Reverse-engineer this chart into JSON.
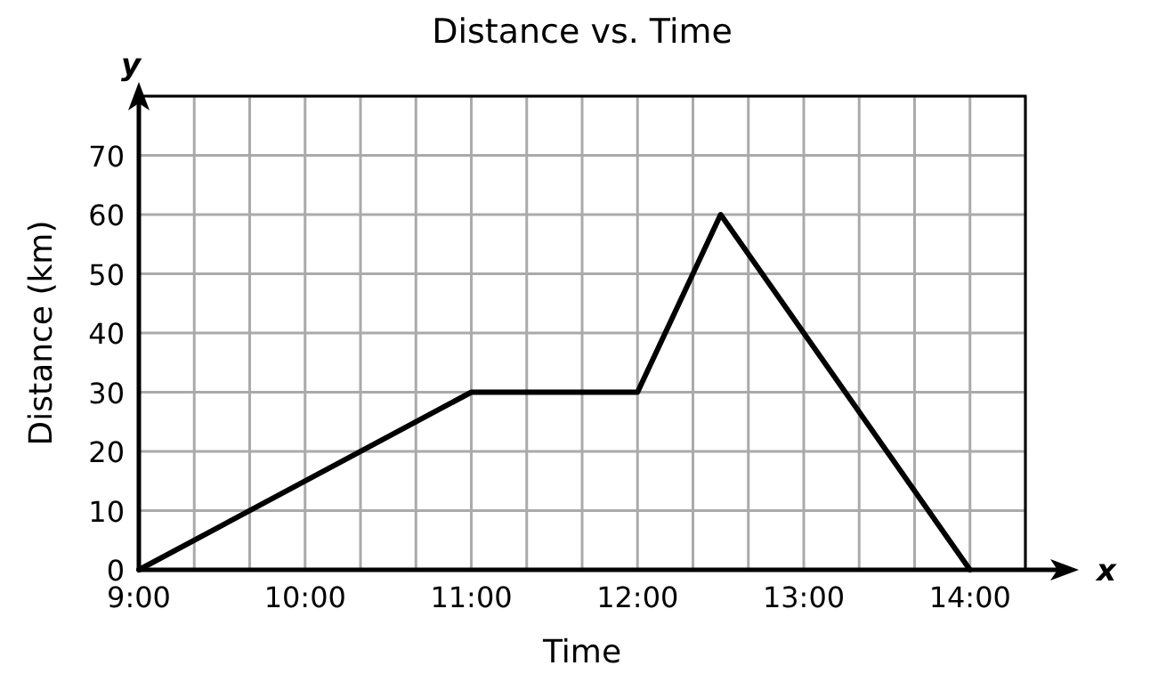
{
  "chart_data": {
    "type": "line",
    "title": "Distance vs. Time",
    "xlabel": "Time",
    "ylabel": "Distance (km)",
    "annotations": [
      "x",
      "y"
    ],
    "x": [
      9,
      11,
      12,
      12.5,
      14
    ],
    "series": [
      {
        "color": "#000000",
        "values": [
          0,
          30,
          30,
          60,
          0
        ]
      }
    ],
    "xlim": [
      9,
      14.3333
    ],
    "ylim": [
      0,
      80
    ],
    "xticks": [
      {
        "value": 9,
        "label": "9:00"
      },
      {
        "value": 9.3333,
        "label": null
      },
      {
        "value": 9.6667,
        "label": null
      },
      {
        "value": 10,
        "label": "10:00"
      },
      {
        "value": 10.3333,
        "label": null
      },
      {
        "value": 10.6667,
        "label": null
      },
      {
        "value": 11,
        "label": "11:00"
      },
      {
        "value": 11.3333,
        "label": null
      },
      {
        "value": 11.6667,
        "label": null
      },
      {
        "value": 12,
        "label": "12:00"
      },
      {
        "value": 12.3333,
        "label": null
      },
      {
        "value": 12.6667,
        "label": null
      },
      {
        "value": 13,
        "label": "13:00"
      },
      {
        "value": 13.3333,
        "label": null
      },
      {
        "value": 13.6667,
        "label": null
      },
      {
        "value": 14,
        "label": "14:00"
      },
      {
        "value": 14.3333,
        "label": null
      }
    ],
    "yticks": [
      0,
      10,
      20,
      30,
      40,
      50,
      60,
      70,
      {
        "value": 80,
        "label": null
      }
    ],
    "grid": true,
    "marker": "none",
    "line_style": "solid"
  }
}
